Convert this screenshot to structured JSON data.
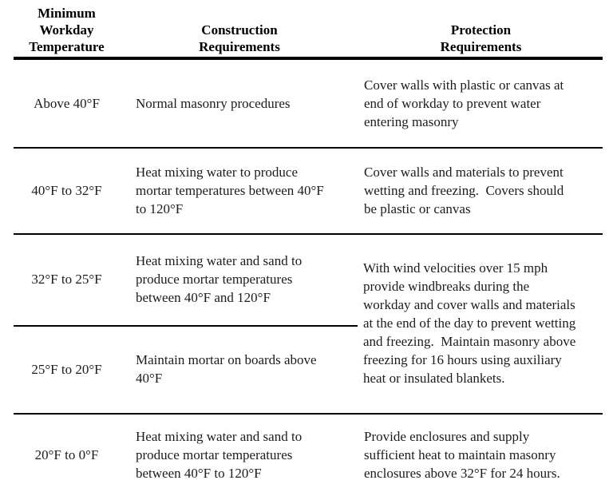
{
  "page": {
    "background_color": "#ffffff",
    "text_color": "#1c1c1c",
    "rule_color": "#000000"
  },
  "table": {
    "columns": [
      {
        "id": "temperature",
        "title": "Minimum\nWorkday\nTemperature"
      },
      {
        "id": "construction",
        "title": "Construction\nRequirements"
      },
      {
        "id": "protection",
        "title": "Protection\nRequirements"
      }
    ],
    "rows": [
      {
        "temperature": "Above 40°F",
        "construction": "Normal masonry procedures",
        "protection": "Cover walls with plastic or canvas at\nend of workday to prevent water\nentering masonry"
      },
      {
        "temperature": "40°F to 32°F",
        "construction": "Heat mixing water to produce\nmortar temperatures between 40°F\nto 120°F",
        "protection": "Cover walls and materials to prevent\nwetting and freezing.  Covers should\nbe plastic or canvas"
      },
      {
        "temperature": "32°F to 25°F",
        "construction": "Heat mixing water and sand to\nproduce mortar temperatures\nbetween 40°F and 120°F"
      },
      {
        "temperature": "25°F to 20°F",
        "construction": "Maintain mortar on boards above\n40°F"
      },
      {
        "temperature": "20°F to 0°F",
        "construction": "Heat mixing water and sand to\nproduce mortar temperatures\nbetween 40°F to 120°F",
        "protection": "Provide enclosures and supply\nsufficient heat to maintain masonry\nenclosures above 32°F for 24 hours."
      }
    ],
    "merged_protection_rows_3_4": "With wind velocities over 15 mph\nprovide windbreaks during the\nworkday and cover walls and materials\nat the end of the day to prevent wetting\nand freezing.  Maintain masonry above\nfreezing for 16 hours using auxiliary\nheat or insulated blankets."
  }
}
